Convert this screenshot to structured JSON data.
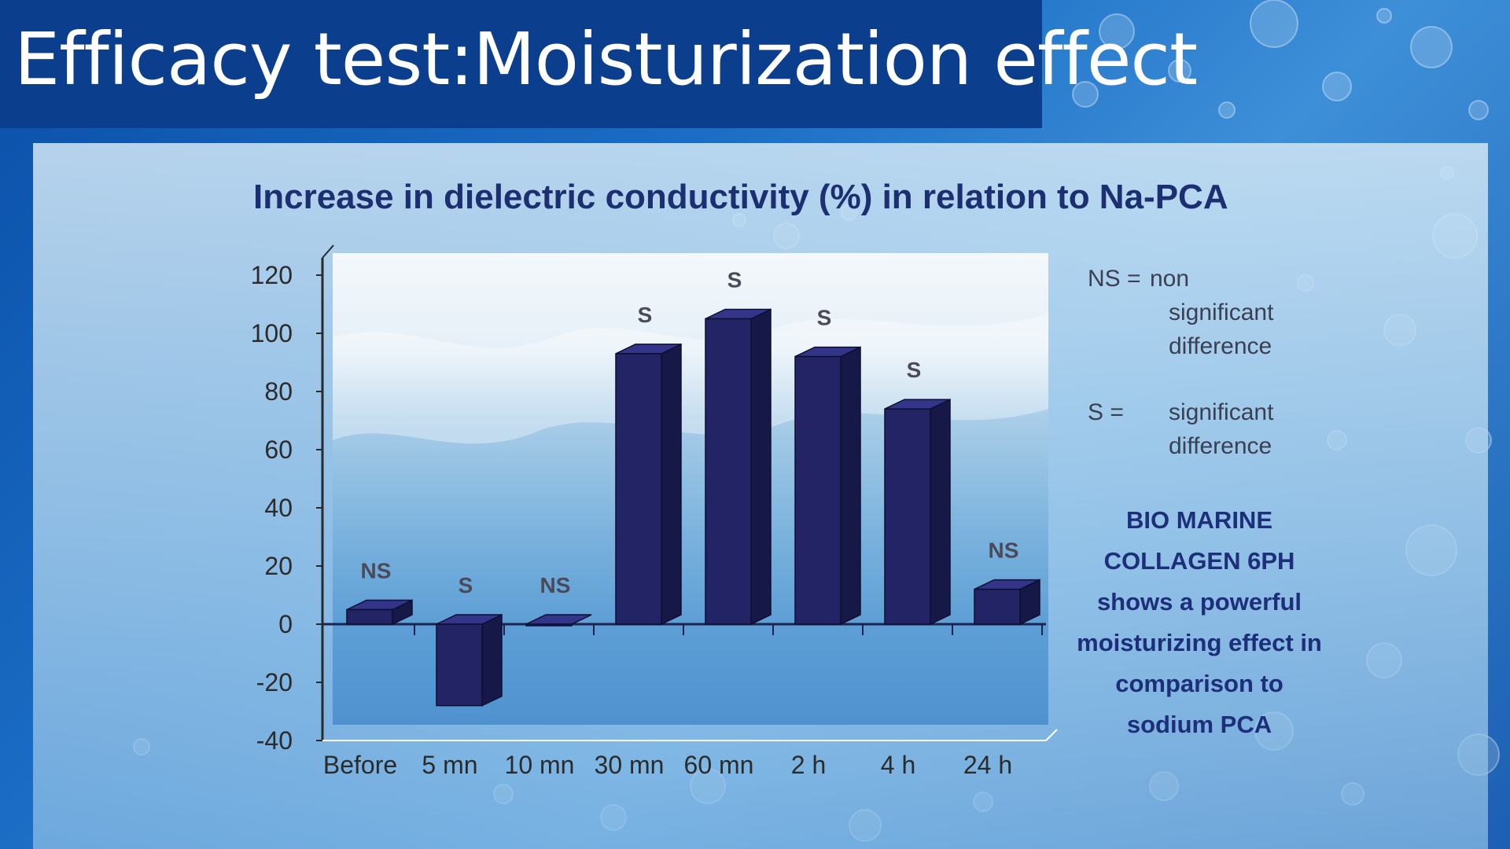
{
  "slide": {
    "title": "Efficacy test:Moisturization effect"
  },
  "legend": {
    "ns_key": "NS =",
    "ns_line1": "non",
    "ns_line2": "significant",
    "ns_line3": "difference",
    "s_key": "S =",
    "s_line1": "significant",
    "s_line2": "difference"
  },
  "callout": {
    "line1": "BIO MARINE",
    "line2": "COLLAGEN 6PH",
    "line3": "shows a powerful",
    "line4": "moisturizing effect in",
    "line5": "comparison to",
    "line6": "sodium PCA"
  },
  "colors": {
    "bar_front": "#232466",
    "bar_side": "#161848",
    "bar_top": "#33358a",
    "title_bar": "#0b3f8e",
    "chart_title": "#1c2f70"
  },
  "chart_data": {
    "type": "bar",
    "title": "Increase in dielectric conductivity (%) in relation to Na-PCA",
    "categories": [
      "Before",
      "5 mn",
      "10 mn",
      "30 mn",
      "60 mn",
      "2 h",
      "4 h",
      "24 h"
    ],
    "values": [
      5,
      -28,
      0,
      93,
      105,
      92,
      74,
      12
    ],
    "significance": [
      "NS",
      "S",
      "NS",
      "S",
      "S",
      "S",
      "S",
      "NS"
    ],
    "yticks": [
      120,
      100,
      80,
      60,
      40,
      20,
      0,
      -20,
      -40
    ],
    "ylim": [
      -40,
      120
    ],
    "xlabel": "",
    "ylabel": "",
    "grid": false,
    "style": "3d"
  }
}
